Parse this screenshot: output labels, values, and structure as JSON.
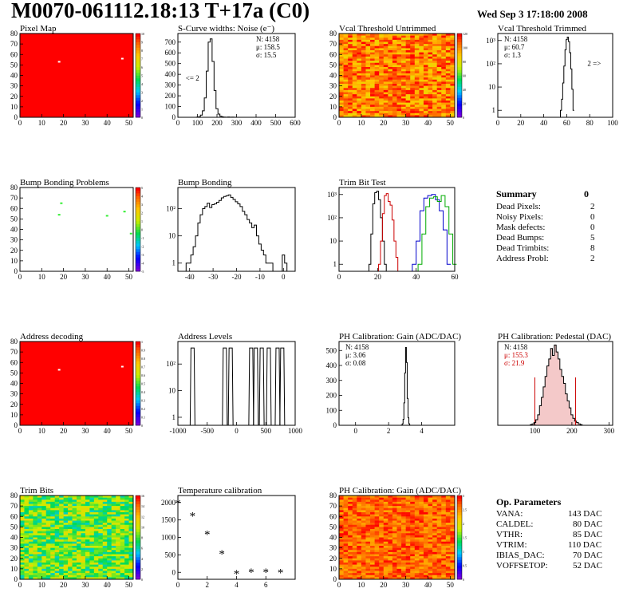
{
  "header": {
    "title": "M0070-061112.18:13 T+17a (C0)",
    "date": "Wed Sep  3 17:18:00 2008"
  },
  "summary": {
    "title": "Summary",
    "value": "0",
    "rows": [
      {
        "label": "Dead Pixels:",
        "value": "2"
      },
      {
        "label": "Noisy Pixels:",
        "value": "0"
      },
      {
        "label": "Mask defects:",
        "value": "0"
      },
      {
        "label": "Dead Bumps:",
        "value": "5"
      },
      {
        "label": "Dead Trimbits:",
        "value": "8"
      },
      {
        "label": "Address Probl:",
        "value": "2"
      }
    ]
  },
  "op_params": {
    "title": "Op. Parameters",
    "rows": [
      {
        "label": "VANA:",
        "value": "143 DAC"
      },
      {
        "label": "CALDEL:",
        "value": "80 DAC"
      },
      {
        "label": "VTHR:",
        "value": "85 DAC"
      },
      {
        "label": "VTRIM:",
        "value": "110 DAC"
      },
      {
        "label": "IBIAS_DAC:",
        "value": "70 DAC"
      },
      {
        "label": "VOFFSETOP:",
        "value": "52 DAC"
      }
    ]
  },
  "chart_data": [
    {
      "id": "pixel-map",
      "type": "heatmap",
      "title": "Pixel Map",
      "xlim": [
        0,
        52
      ],
      "ylim": [
        0,
        80
      ],
      "xticks": [
        0,
        10,
        20,
        30,
        40,
        50
      ],
      "yticks": [
        0,
        10,
        20,
        30,
        40,
        50,
        60,
        70,
        80
      ],
      "fill": "uniform",
      "color": "#ff0000",
      "palette": "z10",
      "zticks": [
        0,
        1,
        2,
        3,
        4,
        5,
        6,
        7,
        8,
        9,
        10
      ],
      "spots": [
        {
          "x": 18,
          "y": 53,
          "color": "#ffffff"
        },
        {
          "x": 47,
          "y": 56,
          "color": "#ffffff"
        }
      ]
    },
    {
      "id": "scurve-widths",
      "type": "line",
      "title": "S-Curve widths: Noise (e⁻)",
      "xlim": [
        0,
        600
      ],
      "ylim": [
        0,
        780
      ],
      "xticks": [
        0,
        100,
        200,
        300,
        400,
        500,
        600
      ],
      "yticks": [
        0,
        100,
        200,
        300,
        400,
        500,
        600,
        700
      ],
      "stats": [
        "N: 4158",
        "μ: 158.5",
        "σ: 15.5"
      ],
      "annotations": [
        {
          "text": "<= 2",
          "x": 40,
          "y": 340
        }
      ],
      "series": [
        {
          "color": "#000000",
          "x": [
            100,
            110,
            120,
            130,
            140,
            150,
            160,
            170,
            180,
            190,
            200,
            210,
            220,
            230,
            240,
            250,
            260,
            270,
            280,
            290,
            300
          ],
          "y": [
            2,
            5,
            20,
            60,
            180,
            430,
            700,
            730,
            520,
            250,
            80,
            30,
            10,
            4,
            2,
            1,
            3,
            1,
            2,
            1,
            0
          ]
        }
      ]
    },
    {
      "id": "vcal-untrimmed",
      "type": "heatmap",
      "title": "Vcal Threshold Untrimmed",
      "xlim": [
        0,
        52
      ],
      "ylim": [
        0,
        80
      ],
      "xticks": [
        0,
        10,
        20,
        30,
        40,
        50
      ],
      "yticks": [
        0,
        10,
        20,
        30,
        40,
        50,
        60,
        70,
        80
      ],
      "fill": "noise-orange",
      "palette": "z120",
      "zticks": [
        0,
        20,
        40,
        60,
        80,
        100,
        120
      ]
    },
    {
      "id": "vcal-trimmed",
      "type": "line",
      "title": "Vcal Threshold Trimmed",
      "xlim": [
        0,
        100
      ],
      "ylog": true,
      "ylim": [
        0.5,
        2000
      ],
      "xticks": [
        0,
        20,
        40,
        60,
        80,
        100
      ],
      "yticklabels": [
        "1",
        "10",
        "10²",
        "10³"
      ],
      "stats": [
        "N: 4158",
        "μ: 60.7",
        "σ:  1.3"
      ],
      "annotations": [
        {
          "text": "2 =>",
          "x": 78,
          "y": 80
        }
      ],
      "series": [
        {
          "color": "#000000",
          "x": [
            55,
            56,
            57,
            58,
            59,
            60,
            61,
            62,
            63,
            64,
            65,
            66
          ],
          "y": [
            1,
            3,
            15,
            80,
            400,
            1100,
            1400,
            900,
            300,
            60,
            8,
            1
          ]
        }
      ]
    },
    {
      "id": "bump-map",
      "type": "heatmap",
      "title": "Bump Bonding Problems",
      "xlim": [
        0,
        52
      ],
      "ylim": [
        0,
        80
      ],
      "xticks": [
        0,
        10,
        20,
        30,
        40,
        50
      ],
      "yticks": [
        0,
        10,
        20,
        30,
        40,
        50,
        60,
        70,
        80
      ],
      "fill": "none",
      "palette": "z5",
      "zticks": [
        -5,
        -4,
        -3,
        -2,
        -1,
        0,
        1,
        2,
        3,
        4,
        5
      ],
      "spots": [
        {
          "x": 19,
          "y": 65,
          "color": "#33ee33"
        },
        {
          "x": 18,
          "y": 54,
          "color": "#33ee33"
        },
        {
          "x": 40,
          "y": 53,
          "color": "#33ee33"
        },
        {
          "x": 48,
          "y": 57,
          "color": "#33ee33"
        },
        {
          "x": 51,
          "y": 36,
          "color": "#33ee33"
        }
      ]
    },
    {
      "id": "bump-bonding",
      "type": "line",
      "title": "Bump Bonding",
      "xlim": [
        -45,
        5
      ],
      "ylog": true,
      "ylim": [
        0.5,
        600
      ],
      "xticks": [
        -40,
        -30,
        -20,
        -10,
        0
      ],
      "yticklabels": [
        "1",
        "10",
        "10²"
      ],
      "series": [
        {
          "color": "#000000",
          "x": [
            -41,
            -40,
            -39,
            -38,
            -37,
            -36,
            -35,
            -34,
            -33,
            -32,
            -31,
            -30,
            -29,
            -28,
            -27,
            -26,
            -25,
            -24,
            -23,
            -22,
            -21,
            -20,
            -19,
            -18,
            -17,
            -16,
            -15,
            -14,
            -13,
            -12,
            -11,
            -10,
            -9,
            -8,
            -7,
            -6,
            -5,
            -4,
            -3,
            -2,
            -1,
            0,
            1,
            2
          ],
          "y": [
            1,
            1,
            2,
            4,
            10,
            30,
            60,
            100,
            120,
            160,
            110,
            140,
            150,
            170,
            200,
            250,
            280,
            300,
            320,
            260,
            220,
            180,
            150,
            120,
            80,
            60,
            40,
            30,
            20,
            25,
            10,
            5,
            3,
            2,
            1,
            1,
            1,
            0,
            0,
            0,
            0,
            2,
            1,
            0
          ]
        }
      ]
    },
    {
      "id": "trim-bit-test",
      "type": "line",
      "title": "Trim Bit Test",
      "xlim": [
        0,
        60
      ],
      "ylog": true,
      "ylim": [
        0.5,
        2000
      ],
      "xticks": [
        0,
        20,
        40,
        60
      ],
      "yticklabels": [
        "1",
        "10",
        "10²",
        "10³"
      ],
      "series": [
        {
          "color": "#000000",
          "x": [
            16,
            17,
            18,
            19,
            20,
            21,
            22,
            23,
            24,
            25
          ],
          "y": [
            1,
            20,
            400,
            1200,
            1400,
            600,
            100,
            10,
            1,
            0
          ]
        },
        {
          "color": "#cc0000",
          "x": [
            21,
            22,
            23,
            24,
            25,
            26,
            27,
            28,
            29,
            30,
            31
          ],
          "y": [
            1,
            10,
            150,
            900,
            1100,
            500,
            350,
            80,
            10,
            2,
            0
          ]
        },
        {
          "color": "#0000cc",
          "x": [
            39,
            41,
            43,
            45,
            47,
            49,
            51,
            53,
            55,
            57
          ],
          "y": [
            1,
            10,
            200,
            700,
            900,
            1000,
            600,
            200,
            30,
            1
          ]
        },
        {
          "color": "#00aa00",
          "x": [
            42,
            44,
            46,
            48,
            50,
            52,
            54,
            56,
            58,
            60
          ],
          "y": [
            1,
            20,
            300,
            700,
            800,
            500,
            900,
            300,
            20,
            1
          ]
        }
      ]
    },
    {
      "id": "address-map",
      "type": "heatmap",
      "title": "Address decoding",
      "xlim": [
        0,
        52
      ],
      "ylim": [
        0,
        80
      ],
      "xticks": [
        0,
        10,
        20,
        30,
        40,
        50
      ],
      "yticks": [
        0,
        10,
        20,
        30,
        40,
        50,
        60,
        70,
        80
      ],
      "fill": "uniform",
      "color": "#ff0000",
      "palette": "z1",
      "zticks": [
        0,
        0.1,
        0.2,
        0.3,
        0.4,
        0.5,
        0.6,
        0.7,
        0.8,
        0.9,
        1
      ],
      "spots": [
        {
          "x": 18,
          "y": 53,
          "color": "#ffffff"
        },
        {
          "x": 47,
          "y": 56,
          "color": "#ffffff"
        }
      ]
    },
    {
      "id": "address-levels",
      "type": "line",
      "title": "Address Levels",
      "xlim": [
        -1000,
        1000
      ],
      "ylog": true,
      "ylim": [
        0.5,
        700
      ],
      "xticks": [
        -1000,
        -500,
        0,
        500,
        1000
      ],
      "yticklabels": [
        "1",
        "10",
        "10²"
      ],
      "peaks": [
        -750,
        -200,
        -100,
        250,
        330,
        430,
        550,
        700,
        780
      ],
      "peak_height": 400
    },
    {
      "id": "ph-gain",
      "type": "line",
      "title": "PH Calibration: Gain (ADC/DAC)",
      "xlim": [
        -1,
        6
      ],
      "ylim": [
        0,
        560
      ],
      "xticks": [
        0,
        2,
        4
      ],
      "yticks": [
        0,
        100,
        200,
        300,
        400,
        500
      ],
      "stats": [
        "N: 4158",
        "μ: 3.06",
        "σ: 0.08"
      ],
      "series": [
        {
          "color": "#000000",
          "x": [
            2.8,
            2.85,
            2.9,
            2.95,
            3.0,
            3.05,
            3.1,
            3.15,
            3.2,
            3.25,
            3.3
          ],
          "y": [
            2,
            10,
            40,
            150,
            350,
            520,
            420,
            180,
            50,
            10,
            1
          ]
        }
      ]
    },
    {
      "id": "ph-pedestal",
      "type": "line",
      "title": "PH Calibration: Pedestal (DAC)",
      "xlim": [
        0,
        310
      ],
      "ylim": [
        0,
        120
      ],
      "xticks": [
        100,
        200,
        300
      ],
      "stats": [
        "N: 4158",
        "μ: 155.3",
        "σ: 21.9"
      ],
      "stats_color": [
        "#000000",
        "#cc0000",
        "#cc0000"
      ],
      "cutlines": [
        100,
        210
      ],
      "series": [
        {
          "color": "#000000",
          "x": [
            90,
            95,
            100,
            105,
            110,
            115,
            120,
            125,
            130,
            135,
            140,
            145,
            150,
            155,
            160,
            165,
            170,
            175,
            180,
            185,
            190,
            195,
            200,
            205,
            210,
            215,
            220,
            225,
            230
          ],
          "y": [
            1,
            2,
            4,
            8,
            15,
            28,
            40,
            55,
            70,
            85,
            95,
            110,
            100,
            115,
            105,
            95,
            80,
            70,
            60,
            45,
            35,
            25,
            15,
            10,
            6,
            4,
            2,
            1,
            0
          ]
        }
      ]
    },
    {
      "id": "trim-bits",
      "type": "heatmap",
      "title": "Trim Bits",
      "xlim": [
        0,
        52
      ],
      "ylim": [
        0,
        80
      ],
      "xticks": [
        0,
        10,
        20,
        30,
        40,
        50
      ],
      "yticks": [
        0,
        10,
        20,
        30,
        40,
        50,
        60,
        70,
        80
      ],
      "fill": "noise-green",
      "palette": "z16",
      "zticks": [
        0,
        2,
        4,
        6,
        8,
        10,
        12,
        14,
        16
      ]
    },
    {
      "id": "temperature",
      "type": "scatter",
      "title": "Temperature calibration",
      "xlim": [
        0,
        8
      ],
      "ylim": [
        -200,
        2200
      ],
      "xticks": [
        0,
        2,
        4,
        6
      ],
      "yticks": [
        0,
        500,
        1000,
        1500,
        2000
      ],
      "points": [
        {
          "x": 0,
          "y": 1960
        },
        {
          "x": 1,
          "y": 1590
        },
        {
          "x": 2,
          "y": 1070
        },
        {
          "x": 3,
          "y": 510
        },
        {
          "x": 4,
          "y": -60
        },
        {
          "x": 5,
          "y": -20
        },
        {
          "x": 6,
          "y": -20
        },
        {
          "x": 7,
          "y": -30
        }
      ]
    },
    {
      "id": "ph-gain-map",
      "type": "heatmap",
      "title": "PH Calibration: Gain (ADC/DAC)",
      "xlim": [
        0,
        52
      ],
      "ylim": [
        0,
        80
      ],
      "xticks": [
        0,
        10,
        20,
        30,
        40,
        50
      ],
      "yticks": [
        0,
        10,
        20,
        30,
        40,
        50,
        60,
        70,
        80
      ],
      "fill": "noise-red",
      "palette": "z3",
      "zticks": [
        0,
        0.5,
        1,
        1.5,
        2,
        2.5,
        3
      ]
    }
  ]
}
